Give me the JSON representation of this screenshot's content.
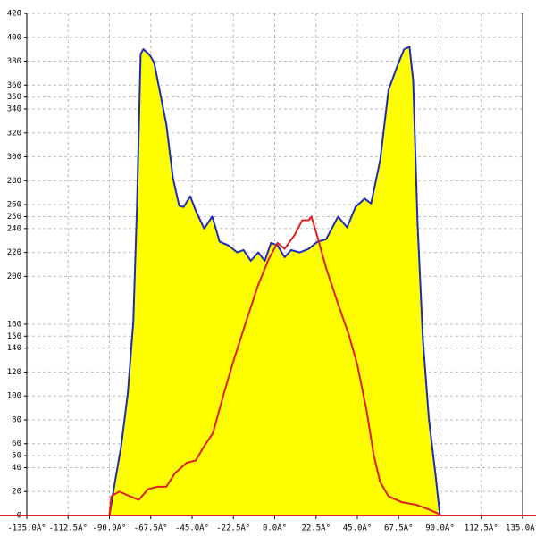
{
  "chart_data": {
    "type": "area_line",
    "xlim": [
      -135,
      135
    ],
    "ylim": [
      0,
      420
    ],
    "xticks": [
      {
        "value": -135,
        "label": "-135.0Â°"
      },
      {
        "value": -112.5,
        "label": "-112.5Â°"
      },
      {
        "value": -90,
        "label": "-90.0Â°"
      },
      {
        "value": -67.5,
        "label": "-67.5Â°"
      },
      {
        "value": -45,
        "label": "-45.0Â°"
      },
      {
        "value": -22.5,
        "label": "-22.5Â°"
      },
      {
        "value": 0,
        "label": "0.0Â°"
      },
      {
        "value": 22.5,
        "label": "22.5Â°"
      },
      {
        "value": 45,
        "label": "45.0Â°"
      },
      {
        "value": 67.5,
        "label": "67.5Â°"
      },
      {
        "value": 90,
        "label": "90.0Â°"
      },
      {
        "value": 112.5,
        "label": "112.5Â°"
      },
      {
        "value": 135,
        "label": "135.0Â°"
      }
    ],
    "yticks": [
      0,
      20,
      40,
      50,
      60,
      80,
      100,
      120,
      140,
      150,
      160,
      200,
      220,
      240,
      250,
      260,
      280,
      300,
      320,
      340,
      350,
      360,
      380,
      400,
      420
    ],
    "grid": true,
    "series": [
      {
        "kind": "area",
        "color": "#1f2bb8",
        "fill": "#ffff00",
        "x": [
          -90,
          -87,
          -83.7,
          -80,
          -77,
          -75,
          -73,
          -71.5,
          -68,
          -65.7,
          -62.7,
          -59,
          -55.4,
          -52,
          -49.6,
          -46,
          -43,
          -38.4,
          -34,
          -30,
          -25.3,
          -20.4,
          -17,
          -13,
          -9,
          -5.4,
          -2,
          1.5,
          5.4,
          9,
          13.6,
          18.5,
          23.3,
          28,
          34.5,
          39.4,
          44,
          49,
          52.5,
          57.4,
          62,
          67,
          70.5,
          73.4,
          75.4,
          77.8,
          80.7,
          84,
          87.5,
          90
        ],
        "values": [
          0,
          28,
          57,
          102,
          162,
          259,
          386,
          390,
          385,
          379,
          356,
          327,
          282,
          259,
          258,
          267,
          255,
          240,
          250,
          229,
          226,
          220,
          222,
          213,
          220,
          213,
          228,
          226,
          216,
          222,
          220,
          223,
          229,
          231,
          250,
          241,
          258,
          265,
          261,
          297,
          356,
          377,
          390,
          392,
          364,
          244,
          147,
          80,
          35,
          0
        ]
      },
      {
        "kind": "line",
        "color": "#e02020",
        "x": [
          -90,
          -89,
          -84.6,
          -78.8,
          -74,
          -69,
          -64,
          -59,
          -54.5,
          -48,
          -43,
          -38.4,
          -33.6,
          -27.7,
          -21.9,
          -15.6,
          -9.2,
          -3.4,
          1.5,
          5.4,
          11,
          15,
          18.5,
          20,
          23.3,
          28,
          34.5,
          40.4,
          45,
          50,
          54,
          57.4,
          62,
          69.5,
          77,
          84,
          90
        ],
        "values": [
          0,
          16,
          20,
          16,
          13,
          22,
          24,
          24,
          35,
          44,
          46,
          58,
          69,
          102,
          132,
          162,
          192,
          214,
          228,
          223,
          235,
          247,
          247,
          250,
          233,
          207,
          177,
          151,
          126,
          88,
          50,
          28,
          16,
          11,
          9,
          5,
          1
        ]
      }
    ]
  }
}
